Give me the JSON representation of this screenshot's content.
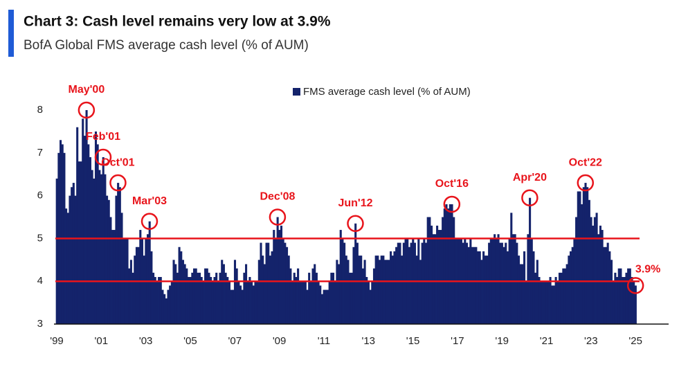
{
  "chart_data": {
    "type": "bar",
    "title": "Chart 3: Cash level remains very low at 3.9%",
    "subtitle": "BofA Global FMS average cash level (% of AUM)",
    "series": [
      {
        "name": "FMS average cash level (% of AUM)",
        "color": "#14236b",
        "values": [
          6.4,
          7.0,
          7.3,
          7.2,
          7.0,
          5.7,
          5.6,
          6.0,
          6.2,
          6.3,
          6.0,
          7.6,
          6.8,
          6.8,
          7.8,
          7.4,
          8.0,
          7.2,
          6.9,
          6.6,
          6.4,
          7.5,
          7.2,
          6.6,
          6.5,
          6.9,
          6.5,
          6.0,
          5.9,
          5.5,
          5.2,
          5.2,
          6.0,
          6.3,
          6.2,
          5.6,
          5.0,
          5.0,
          5.0,
          4.3,
          4.5,
          4.2,
          4.6,
          4.8,
          4.8,
          5.2,
          5.0,
          4.6,
          5.0,
          5.1,
          5.4,
          4.7,
          4.2,
          4.1,
          4.0,
          4.1,
          4.1,
          3.8,
          3.7,
          3.6,
          3.8,
          3.9,
          4.0,
          4.5,
          4.4,
          4.2,
          4.8,
          4.7,
          4.5,
          4.4,
          4.3,
          4.1,
          4.1,
          4.2,
          4.3,
          4.3,
          4.2,
          4.2,
          4.1,
          4.0,
          4.3,
          4.3,
          4.2,
          4.1,
          4.0,
          4.1,
          4.2,
          4.0,
          4.2,
          4.5,
          4.4,
          4.2,
          4.1,
          4.0,
          3.8,
          3.8,
          4.5,
          4.3,
          4.0,
          3.9,
          3.8,
          4.2,
          4.4,
          4.0,
          4.1,
          4.0,
          3.9,
          4.0,
          4.0,
          4.5,
          4.9,
          4.6,
          4.4,
          4.9,
          4.9,
          4.6,
          4.7,
          5.2,
          5.0,
          5.5,
          5.2,
          5.3,
          5.0,
          4.9,
          4.8,
          4.6,
          4.3,
          4.0,
          4.2,
          4.1,
          4.3,
          4.0,
          4.0,
          4.0,
          4.0,
          3.8,
          4.2,
          4.0,
          4.3,
          4.4,
          4.2,
          4.0,
          3.9,
          3.7,
          3.8,
          3.8,
          3.8,
          4.0,
          4.2,
          4.2,
          4.0,
          4.5,
          4.4,
          5.2,
          5.0,
          4.9,
          4.6,
          4.5,
          4.2,
          4.2,
          4.8,
          5.35,
          4.9,
          4.6,
          4.6,
          4.3,
          4.5,
          4.1,
          4.0,
          3.8,
          4.0,
          4.3,
          4.6,
          4.6,
          4.5,
          4.6,
          4.6,
          4.5,
          4.5,
          4.5,
          4.7,
          4.6,
          4.7,
          4.8,
          4.9,
          4.9,
          4.6,
          4.9,
          5.0,
          5.0,
          4.8,
          4.9,
          5.0,
          4.9,
          4.6,
          5.0,
          4.5,
          4.9,
          5.0,
          4.9,
          5.5,
          5.5,
          5.3,
          5.1,
          5.1,
          5.3,
          5.2,
          5.2,
          5.5,
          5.7,
          5.8,
          5.7,
          5.8,
          5.8,
          5.5,
          5.0,
          5.0,
          5.0,
          5.0,
          4.9,
          5.0,
          4.9,
          4.8,
          5.0,
          4.8,
          4.8,
          4.8,
          4.7,
          4.7,
          4.5,
          4.7,
          4.6,
          4.6,
          4.9,
          5.0,
          5.0,
          5.1,
          5.0,
          5.1,
          4.9,
          4.9,
          4.8,
          4.9,
          4.7,
          5.0,
          5.6,
          5.1,
          5.1,
          4.9,
          4.6,
          4.4,
          4.4,
          4.7,
          4.0,
          5.1,
          5.95,
          5.0,
          4.7,
          4.2,
          4.5,
          4.1,
          4.0,
          4.0,
          4.0,
          4.0,
          4.0,
          4.1,
          3.9,
          3.9,
          4.1,
          4.0,
          4.2,
          4.2,
          4.3,
          4.3,
          4.4,
          4.6,
          4.7,
          4.8,
          5.0,
          5.5,
          6.1,
          6.1,
          5.8,
          6.2,
          6.3,
          6.2,
          5.9,
          5.5,
          5.3,
          5.5,
          5.6,
          5.1,
          5.3,
          5.2,
          4.8,
          4.8,
          4.9,
          4.7,
          4.5,
          4.0,
          4.2,
          4.1,
          4.3,
          4.3,
          4.1,
          4.1,
          4.2,
          4.3,
          4.3,
          4.1,
          4.0,
          3.9
        ]
      }
    ],
    "categories": [
      "'99",
      null,
      null,
      null,
      null,
      null,
      null,
      null,
      null,
      null,
      null,
      null,
      null,
      null,
      null,
      null,
      null,
      null,
      null,
      null,
      null,
      null,
      null,
      null,
      "'01",
      null,
      null,
      null,
      null,
      null,
      null,
      null,
      null,
      null,
      null,
      null,
      null,
      null,
      null,
      null,
      null,
      null,
      null,
      null,
      null,
      null,
      null,
      null,
      "'03",
      null,
      null,
      null,
      null,
      null,
      null,
      null,
      null,
      null,
      null,
      null,
      null,
      null,
      null,
      null,
      null,
      null,
      null,
      null,
      null,
      null,
      null,
      null,
      "'05",
      null,
      null,
      null,
      null,
      null,
      null,
      null,
      null,
      null,
      null,
      null,
      null,
      null,
      null,
      null,
      null,
      null,
      null,
      null,
      null,
      null,
      null,
      null,
      "'07",
      null,
      null,
      null,
      null,
      null,
      null,
      null,
      null,
      null,
      null,
      null,
      null,
      null,
      null,
      null,
      null,
      null,
      null,
      null,
      null,
      null,
      null,
      null,
      "'09",
      null,
      null,
      null,
      null,
      null,
      null,
      null,
      null,
      null,
      null,
      null,
      null,
      null,
      null,
      null,
      null,
      null,
      null,
      null,
      null,
      null,
      null,
      null,
      "'11",
      null,
      null,
      null,
      null,
      null,
      null,
      null,
      null,
      null,
      null,
      null,
      null,
      null,
      null,
      null,
      null,
      null,
      null,
      null,
      null,
      null,
      null,
      null,
      "'13",
      null,
      null,
      null,
      null,
      null,
      null,
      null,
      null,
      null,
      null,
      null,
      null,
      null,
      null,
      null,
      null,
      null,
      null,
      null,
      null,
      null,
      null,
      null,
      "'15",
      null,
      null,
      null,
      null,
      null,
      null,
      null,
      null,
      null,
      null,
      null,
      null,
      null,
      null,
      null,
      null,
      null,
      null,
      null,
      null,
      null,
      null,
      null,
      "'17",
      null,
      null,
      null,
      null,
      null,
      null,
      null,
      null,
      null,
      null,
      null,
      null,
      null,
      null,
      null,
      null,
      null,
      null,
      null,
      null,
      null,
      null,
      null,
      "'19",
      null,
      null,
      null,
      null,
      null,
      null,
      null,
      null,
      null,
      null,
      null,
      null,
      null,
      null,
      null,
      null,
      null,
      null,
      null,
      null,
      null,
      null,
      null,
      "'21",
      null,
      null,
      null,
      null,
      null,
      null,
      null,
      null,
      null,
      null,
      null,
      null,
      null,
      null,
      null,
      null,
      null,
      null,
      null,
      null,
      null,
      null,
      null,
      "'23",
      null,
      null,
      null,
      null,
      null,
      null,
      null,
      null,
      null,
      null,
      null,
      null,
      null,
      null,
      null,
      null,
      null,
      null,
      null,
      null,
      null,
      null,
      null,
      "'25"
    ],
    "ylim": [
      3,
      8
    ],
    "yticks": [
      3,
      4,
      5,
      6,
      7,
      8
    ],
    "reference_lines": [
      5,
      4
    ],
    "reference_color": "#e8141b",
    "annotations": [
      {
        "label": "May'00",
        "index": 16
      },
      {
        "label": "Feb'01",
        "index": 25
      },
      {
        "label": "Oct'01",
        "index": 33
      },
      {
        "label": "Mar'03",
        "index": 50
      },
      {
        "label": "Dec'08",
        "index": 119
      },
      {
        "label": "Jun'12",
        "index": 161
      },
      {
        "label": "Oct'16",
        "index": 213
      },
      {
        "label": "Apr'20",
        "index": 255
      },
      {
        "label": "Oct'22",
        "index": 285
      },
      {
        "label": "3.9%",
        "index": 312
      }
    ],
    "legend": "top"
  }
}
